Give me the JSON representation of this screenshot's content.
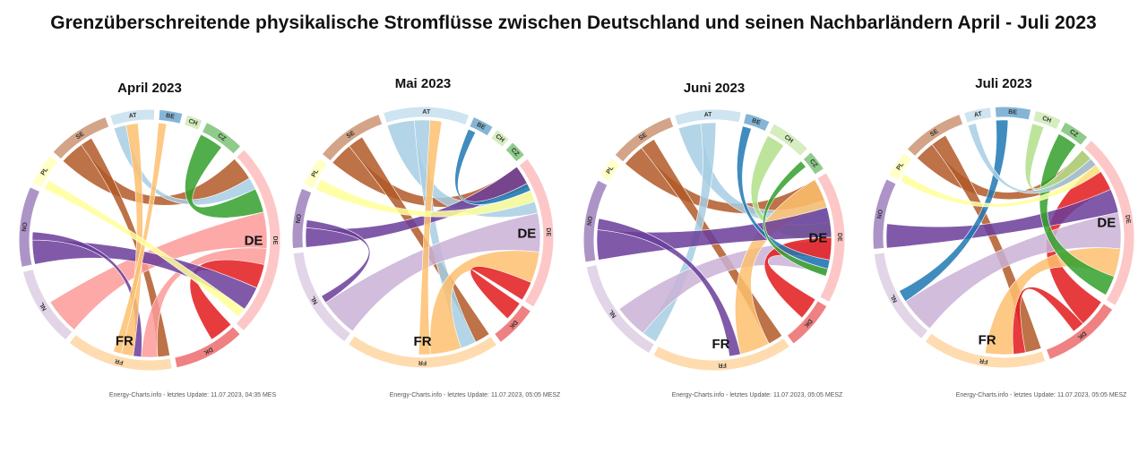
{
  "title": "Grenzüberschreitende physikalische Stromflüsse zwischen Deutschland und seinen Nachbarländern April - Juli 2023",
  "country_colors": {
    "AT": "#a6cee3",
    "BE": "#1f78b4",
    "CH": "#b2df8a",
    "CZ": "#33a02c",
    "DE": "#fb9a99",
    "DK": "#e31a1c",
    "FR": "#fdbf6f",
    "NL": "#cab2d6",
    "NO": "#6a3d9a",
    "PL": "#ffff99",
    "SE": "#b15928"
  },
  "chart_data": [
    {
      "type": "chord",
      "title": "April 2023",
      "credit": "Energy-Charts.info - letztes Update: 11.07.2023, 04:35 MES",
      "big_labels": [
        "FR",
        "DE"
      ],
      "groups": [
        {
          "code": "AT",
          "share": 5.0
        },
        {
          "code": "BE",
          "share": 2.6
        },
        {
          "code": "CH",
          "share": 1.8
        },
        {
          "code": "CZ",
          "share": 4.6
        },
        {
          "code": "DE",
          "share": 22.0
        },
        {
          "code": "DK",
          "share": 8.0
        },
        {
          "code": "FR",
          "share": 12.0
        },
        {
          "code": "NL",
          "share": 9.0
        },
        {
          "code": "NO",
          "share": 9.0
        },
        {
          "code": "PL",
          "share": 3.6
        },
        {
          "code": "SE",
          "share": 7.0
        }
      ],
      "flows": [
        {
          "from": "SE",
          "to": "DE",
          "value": 3.0
        },
        {
          "from": "SE",
          "to": "FR",
          "value": 1.5
        },
        {
          "from": "AT",
          "to": "DE",
          "value": 1.5
        },
        {
          "from": "CZ",
          "to": "DE",
          "value": 3.0
        },
        {
          "from": "DE",
          "to": "NL",
          "value": 4.5
        },
        {
          "from": "DE",
          "to": "FR",
          "value": 2.0
        },
        {
          "from": "DK",
          "to": "DE",
          "value": 3.0
        },
        {
          "from": "NO",
          "to": "DE",
          "value": 3.0
        },
        {
          "from": "NO",
          "to": "FR",
          "value": 1.0
        },
        {
          "from": "FR",
          "to": "AT",
          "value": 1.5
        },
        {
          "from": "FR",
          "to": "BE",
          "value": 1.0
        },
        {
          "from": "PL",
          "to": "DE",
          "value": 1.2
        }
      ]
    },
    {
      "type": "chord",
      "title": "Mai 2023",
      "credit": "Energy-Charts.info - letztes Update: 11.07.2023, 05:05 MESZ",
      "big_labels": [
        "FR",
        "DE"
      ],
      "groups": [
        {
          "code": "AT",
          "share": 10.0
        },
        {
          "code": "BE",
          "share": 2.5
        },
        {
          "code": "CH",
          "share": 1.8
        },
        {
          "code": "CZ",
          "share": 2.0
        },
        {
          "code": "DE",
          "share": 18.0
        },
        {
          "code": "DK",
          "share": 5.0
        },
        {
          "code": "FR",
          "share": 18.0
        },
        {
          "code": "NL",
          "share": 12.0
        },
        {
          "code": "NO",
          "share": 7.0
        },
        {
          "code": "PL",
          "share": 3.5
        },
        {
          "code": "SE",
          "share": 8.0
        }
      ],
      "flows": [
        {
          "from": "SE",
          "to": "DE",
          "value": 3.0
        },
        {
          "from": "SE",
          "to": "FR",
          "value": 2.0
        },
        {
          "from": "AT",
          "to": "DE",
          "value": 3.5
        },
        {
          "from": "AT",
          "to": "FR",
          "value": 2.0
        },
        {
          "from": "NL",
          "to": "DE",
          "value": 5.0
        },
        {
          "from": "FR",
          "to": "DE",
          "value": 4.0
        },
        {
          "from": "DK",
          "to": "DE",
          "value": 2.5
        },
        {
          "from": "NO",
          "to": "DE",
          "value": 2.5
        },
        {
          "from": "NO",
          "to": "NL",
          "value": 1.0
        },
        {
          "from": "BE",
          "to": "DE",
          "value": 1.0
        },
        {
          "from": "FR",
          "to": "AT",
          "value": 1.5
        },
        {
          "from": "PL",
          "to": "DE",
          "value": 1.5
        }
      ]
    },
    {
      "type": "chord",
      "title": "Juni 2023",
      "credit": "Energy-Charts.info - letztes Update: 11.07.2023, 05:05 MESZ",
      "big_labels": [
        "FR",
        "DE"
      ],
      "groups": [
        {
          "code": "AT",
          "share": 8.0
        },
        {
          "code": "BE",
          "share": 3.0
        },
        {
          "code": "CH",
          "share": 5.0
        },
        {
          "code": "CZ",
          "share": 2.5
        },
        {
          "code": "DE",
          "share": 16.0
        },
        {
          "code": "DK",
          "share": 6.0
        },
        {
          "code": "FR",
          "share": 17.0
        },
        {
          "code": "NL",
          "share": 13.0
        },
        {
          "code": "NO",
          "share": 10.0
        },
        {
          "code": "PL",
          "share": 2.5
        },
        {
          "code": "SE",
          "share": 8.0
        }
      ],
      "flows": [
        {
          "from": "SE",
          "to": "DE",
          "value": 3.0
        },
        {
          "from": "SE",
          "to": "FR",
          "value": 2.0
        },
        {
          "from": "AT",
          "to": "DE",
          "value": 3.0
        },
        {
          "from": "AT",
          "to": "NL",
          "value": 2.0
        },
        {
          "from": "CH",
          "to": "DE",
          "value": 2.5
        },
        {
          "from": "NL",
          "to": "DE",
          "value": 4.5
        },
        {
          "from": "FR",
          "to": "DE",
          "value": 4.0
        },
        {
          "from": "NO",
          "to": "DE",
          "value": 4.0
        },
        {
          "from": "NO",
          "to": "FR",
          "value": 1.5
        },
        {
          "from": "DK",
          "to": "DE",
          "value": 3.0
        },
        {
          "from": "BE",
          "to": "DE",
          "value": 1.2
        },
        {
          "from": "CZ",
          "to": "DE",
          "value": 1.0
        }
      ]
    },
    {
      "type": "chord",
      "title": "Juli 2023",
      "credit": "Energy-Charts.info - letztes Update: 11.07.2023, 05:05 MESZ",
      "big_labels": [
        "FR",
        "DE"
      ],
      "groups": [
        {
          "code": "AT",
          "share": 3.0
        },
        {
          "code": "BE",
          "share": 4.0
        },
        {
          "code": "CH",
          "share": 3.0
        },
        {
          "code": "CZ",
          "share": 3.0
        },
        {
          "code": "DE",
          "share": 20.0
        },
        {
          "code": "DK",
          "share": 9.0
        },
        {
          "code": "FR",
          "share": 14.0
        },
        {
          "code": "NL",
          "share": 11.0
        },
        {
          "code": "NO",
          "share": 8.0
        },
        {
          "code": "PL",
          "share": 3.0
        },
        {
          "code": "SE",
          "share": 7.0
        }
      ],
      "flows": [
        {
          "from": "SE",
          "to": "DE",
          "value": 2.5
        },
        {
          "from": "SE",
          "to": "FR",
          "value": 2.0
        },
        {
          "from": "DK",
          "to": "DE",
          "value": 3.5
        },
        {
          "from": "DK",
          "to": "FR",
          "value": 1.5
        },
        {
          "from": "NO",
          "to": "DE",
          "value": 3.0
        },
        {
          "from": "NL",
          "to": "DE",
          "value": 4.5
        },
        {
          "from": "FR",
          "to": "DE",
          "value": 3.5
        },
        {
          "from": "CZ",
          "to": "DE",
          "value": 2.5
        },
        {
          "from": "BE",
          "to": "NL",
          "value": 1.5
        },
        {
          "from": "CH",
          "to": "DE",
          "value": 1.5
        },
        {
          "from": "AT",
          "to": "DE",
          "value": 1.0
        },
        {
          "from": "PL",
          "to": "DE",
          "value": 1.0
        }
      ]
    }
  ]
}
